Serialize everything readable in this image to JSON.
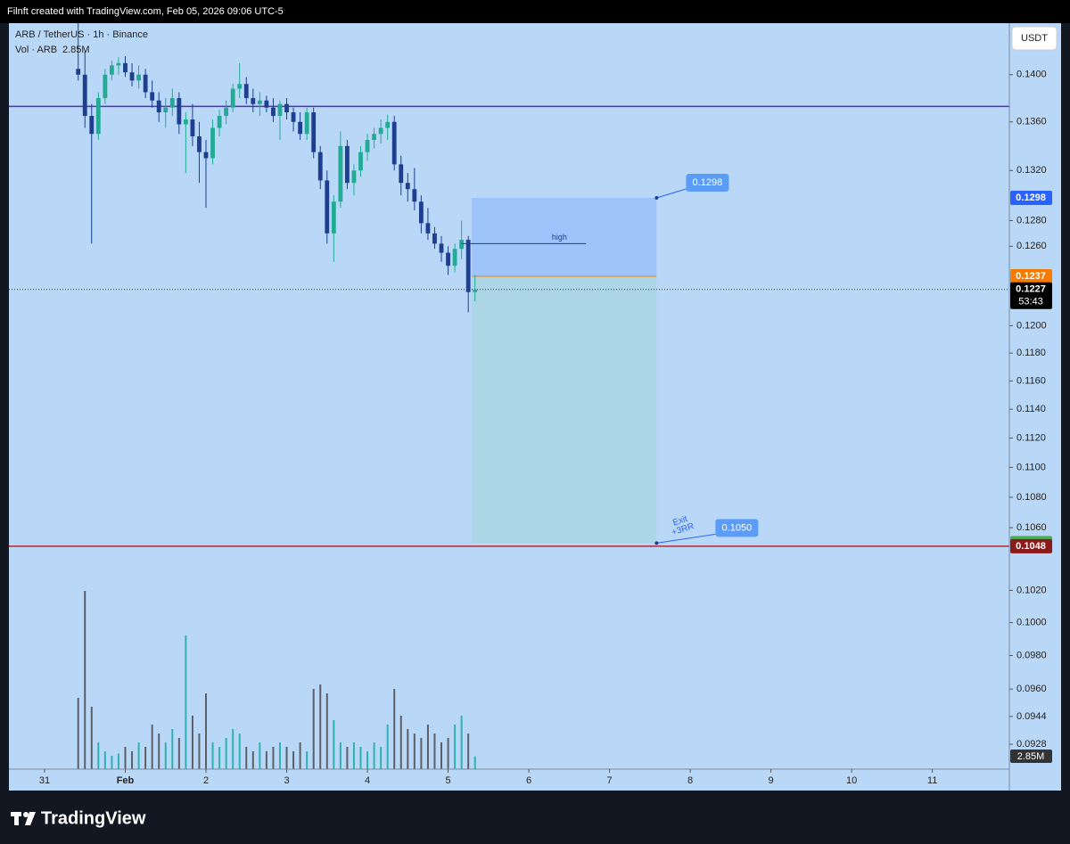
{
  "header": "Filnft created with TradingView.com, Feb 05, 2026 09:06 UTC-5",
  "brand": "TradingView",
  "chart_data": {
    "type": "candlestick",
    "title": "ARB / TetherUS · 1h · Binance",
    "currency": "USDT",
    "log_scale": true,
    "grid": false,
    "ylim": [
      0.0902,
      0.1445
    ],
    "yticks": [
      {
        "value": 0.14,
        "label": "0.1400"
      },
      {
        "value": 0.136,
        "label": "0.1360"
      },
      {
        "value": 0.132,
        "label": "0.1320"
      },
      {
        "value": 0.128,
        "label": "0.1280"
      },
      {
        "value": 0.126,
        "label": "0.1260"
      },
      {
        "value": 0.12,
        "label": "0.1200"
      },
      {
        "value": 0.118,
        "label": "0.1180"
      },
      {
        "value": 0.116,
        "label": "0.1160"
      },
      {
        "value": 0.114,
        "label": "0.1140"
      },
      {
        "value": 0.112,
        "label": "0.1120"
      },
      {
        "value": 0.11,
        "label": "0.1100"
      },
      {
        "value": 0.108,
        "label": "0.1080"
      },
      {
        "value": 0.106,
        "label": "0.1060"
      },
      {
        "value": 0.102,
        "label": "0.1020"
      },
      {
        "value": 0.1,
        "label": "0.1000"
      },
      {
        "value": 0.098,
        "label": "0.0980"
      },
      {
        "value": 0.096,
        "label": "0.0960"
      },
      {
        "value": 0.0944,
        "label": "0.0944"
      },
      {
        "value": 0.0928,
        "label": "0.0928"
      }
    ],
    "xlim": [
      -10.6,
      286.9
    ],
    "xticks": [
      {
        "value": 0,
        "label": "31"
      },
      {
        "value": 24,
        "label": "Feb"
      },
      {
        "value": 48,
        "label": "2"
      },
      {
        "value": 72,
        "label": "3"
      },
      {
        "value": 96,
        "label": "4"
      },
      {
        "value": 120,
        "label": "5"
      },
      {
        "value": 144,
        "label": "6"
      },
      {
        "value": 168,
        "label": "7"
      },
      {
        "value": 192,
        "label": "8"
      },
      {
        "value": 216,
        "label": "9"
      },
      {
        "value": 240,
        "label": "10"
      },
      {
        "value": 264,
        "label": "11"
      }
    ],
    "x": [
      10,
      12,
      14,
      16,
      18,
      20,
      22,
      24,
      26,
      28,
      30,
      32,
      34,
      36,
      38,
      40,
      42,
      44,
      46,
      48,
      50,
      52,
      54,
      56,
      58,
      60,
      62,
      64,
      66,
      68,
      70,
      72,
      74,
      76,
      78,
      80,
      82,
      84,
      86,
      88,
      90,
      92,
      94,
      96,
      98,
      100,
      102,
      104,
      106,
      108,
      110,
      112,
      114,
      116,
      118,
      120,
      122,
      124,
      126,
      128
    ],
    "open": [
      0.1405,
      0.14,
      0.1365,
      0.135,
      0.138,
      0.14,
      0.1408,
      0.141,
      0.1402,
      0.1395,
      0.14,
      0.1385,
      0.1378,
      0.1368,
      0.1372,
      0.138,
      0.1358,
      0.1362,
      0.1348,
      0.1335,
      0.133,
      0.1355,
      0.1365,
      0.1372,
      0.1388,
      0.1392,
      0.138,
      0.1375,
      0.1378,
      0.1372,
      0.1365,
      0.1375,
      0.1368,
      0.136,
      0.135,
      0.1368,
      0.1335,
      0.1312,
      0.127,
      0.1295,
      0.134,
      0.131,
      0.132,
      0.1335,
      0.1345,
      0.135,
      0.1355,
      0.136,
      0.1325,
      0.131,
      0.1305,
      0.1295,
      0.1278,
      0.127,
      0.1262,
      0.1255,
      0.1245,
      0.1258,
      0.1265,
      0.1225
    ],
    "high": [
      0.1445,
      0.142,
      0.1375,
      0.1385,
      0.1405,
      0.1412,
      0.1415,
      0.1416,
      0.141,
      0.1408,
      0.1405,
      0.1395,
      0.1385,
      0.138,
      0.1388,
      0.1385,
      0.1368,
      0.1375,
      0.136,
      0.1345,
      0.1362,
      0.137,
      0.1378,
      0.1392,
      0.141,
      0.1398,
      0.1388,
      0.1385,
      0.1382,
      0.138,
      0.1378,
      0.138,
      0.1372,
      0.1368,
      0.1372,
      0.1372,
      0.134,
      0.132,
      0.13,
      0.1352,
      0.1345,
      0.1325,
      0.134,
      0.135,
      0.1355,
      0.1362,
      0.1366,
      0.1365,
      0.1332,
      0.1318,
      0.1322,
      0.13,
      0.129,
      0.1275,
      0.1268,
      0.126,
      0.1262,
      0.128,
      0.1268,
      0.1238
    ],
    "low": [
      0.1395,
      0.1355,
      0.1262,
      0.1345,
      0.1375,
      0.1395,
      0.14,
      0.1398,
      0.139,
      0.1388,
      0.138,
      0.1372,
      0.136,
      0.1355,
      0.1365,
      0.135,
      0.1318,
      0.134,
      0.131,
      0.129,
      0.1325,
      0.1348,
      0.1358,
      0.1368,
      0.138,
      0.1375,
      0.1368,
      0.1365,
      0.1368,
      0.136,
      0.1345,
      0.1362,
      0.1352,
      0.1345,
      0.1345,
      0.133,
      0.1305,
      0.1262,
      0.1248,
      0.129,
      0.1305,
      0.13,
      0.1315,
      0.1328,
      0.1338,
      0.1342,
      0.1345,
      0.132,
      0.13,
      0.1295,
      0.1288,
      0.127,
      0.1265,
      0.1258,
      0.1248,
      0.1238,
      0.124,
      0.125,
      0.121,
      0.1218
    ],
    "close": [
      0.14,
      0.1365,
      0.135,
      0.138,
      0.14,
      0.1408,
      0.141,
      0.1402,
      0.1395,
      0.14,
      0.1385,
      0.1378,
      0.1368,
      0.1372,
      0.138,
      0.1358,
      0.1362,
      0.1348,
      0.1335,
      0.133,
      0.1355,
      0.1365,
      0.1372,
      0.1388,
      0.1392,
      0.138,
      0.1375,
      0.1378,
      0.1372,
      0.1365,
      0.1375,
      0.1368,
      0.136,
      0.135,
      0.1368,
      0.1335,
      0.1312,
      0.127,
      0.1295,
      0.134,
      0.131,
      0.132,
      0.1335,
      0.1345,
      0.135,
      0.1355,
      0.136,
      0.1325,
      0.131,
      0.1305,
      0.1295,
      0.1278,
      0.127,
      0.1262,
      0.1255,
      0.1245,
      0.1258,
      0.1265,
      0.1225,
      0.1227
    ],
    "volume": [
      16000000,
      40000000,
      14000000,
      6000000,
      4000000,
      3000000,
      3500000,
      5000000,
      4000000,
      6000000,
      5000000,
      10000000,
      8000000,
      6000000,
      9000000,
      7000000,
      30000000,
      12000000,
      8000000,
      17000000,
      6000000,
      5000000,
      7000000,
      9000000,
      8000000,
      5000000,
      4000000,
      6000000,
      4000000,
      5000000,
      6000000,
      5000000,
      4000000,
      6000000,
      4000000,
      18000000,
      19000000,
      17000000,
      11000000,
      6000000,
      5000000,
      6000000,
      5000000,
      4000000,
      6000000,
      5000000,
      10000000,
      18000000,
      12000000,
      9000000,
      8000000,
      7000000,
      10000000,
      8000000,
      6000000,
      7000000,
      10000000,
      12000000,
      8000000,
      2850000
    ],
    "vol_ylim": [
      0,
      42000000
    ],
    "up_color": "#22ab94",
    "down_color": "#1e3f8f",
    "volume_up_color": "#2fb1b0",
    "volume_down_color": "#5c5f66",
    "volume_title": "Vol · ARB",
    "volume_label": "2.85M",
    "last_price": {
      "value": 0.1227,
      "label": "0.1227"
    },
    "countdown": "53:43",
    "lines": [
      {
        "value": 0.1373,
        "color": "#5b2bb5"
      },
      {
        "value": 0.1048,
        "label": "0.1048",
        "color": "#b22833"
      }
    ],
    "position": {
      "x": [
        127,
        182
      ],
      "stop": {
        "value": 0.1298,
        "label": "0.1298"
      },
      "entry": {
        "value": 0.1237,
        "label": "0.1237"
      },
      "target": {
        "value": 0.105,
        "label": "0.1050"
      }
    },
    "high_note": {
      "text": "high",
      "value": 0.1262,
      "x": [
        124,
        161
      ]
    },
    "exit_note": [
      "Exit",
      "+3RR"
    ]
  }
}
